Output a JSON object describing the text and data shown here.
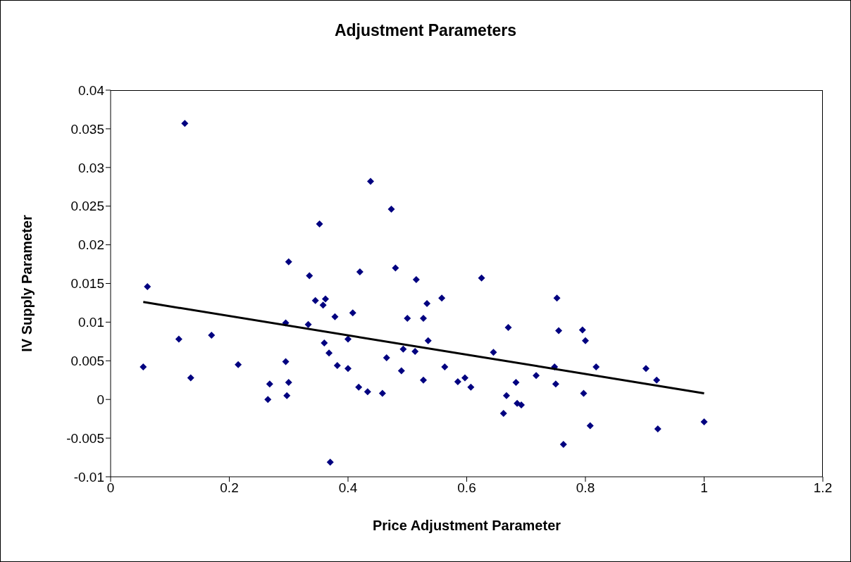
{
  "chart_data": {
    "type": "scatter",
    "title": "Adjustment Parameters",
    "xlabel": "Price Adjustment Parameter",
    "ylabel": "IV Supply Parameter",
    "xlim": [
      0,
      1.2
    ],
    "xticks": [
      0,
      0.2,
      0.4,
      0.6,
      0.8,
      1,
      1.2
    ],
    "ylim": [
      -0.01,
      0.04
    ],
    "yticks": [
      -0.01,
      -0.005,
      0,
      0.005,
      0.01,
      0.015,
      0.02,
      0.025,
      0.03,
      0.035,
      0.04
    ],
    "marker": "diamond",
    "series": [
      {
        "color": "#000080",
        "x": [
          0.055,
          0.062,
          0.115,
          0.125,
          0.135,
          0.17,
          0.215,
          0.265,
          0.268,
          0.295,
          0.295,
          0.297,
          0.3,
          0.3,
          0.333,
          0.335,
          0.345,
          0.352,
          0.358,
          0.36,
          0.362,
          0.368,
          0.37,
          0.378,
          0.382,
          0.4,
          0.4,
          0.408,
          0.418,
          0.42,
          0.433,
          0.438,
          0.458,
          0.465,
          0.473,
          0.48,
          0.49,
          0.493,
          0.5,
          0.513,
          0.515,
          0.527,
          0.527,
          0.533,
          0.535,
          0.558,
          0.563,
          0.585,
          0.597,
          0.607,
          0.625,
          0.645,
          0.662,
          0.667,
          0.67,
          0.683,
          0.685,
          0.692,
          0.717,
          0.748,
          0.75,
          0.752,
          0.755,
          0.763,
          0.795,
          0.797,
          0.8,
          0.808,
          0.818,
          0.902,
          0.92,
          0.922,
          1.0
        ],
        "values": [
          0.0042,
          0.0146,
          0.0078,
          0.0357,
          0.0028,
          0.0083,
          0.0045,
          0.0,
          0.002,
          0.0049,
          0.0099,
          0.0005,
          0.0022,
          0.0178,
          0.0097,
          0.016,
          0.0128,
          0.0227,
          0.0122,
          0.0073,
          0.013,
          0.006,
          -0.0081,
          0.0107,
          0.0044,
          0.0078,
          0.004,
          0.0112,
          0.0016,
          0.0165,
          0.001,
          0.0282,
          0.0008,
          0.0054,
          0.0246,
          0.017,
          0.0037,
          0.0065,
          0.0105,
          0.0062,
          0.0155,
          0.0025,
          0.0105,
          0.0124,
          0.0076,
          0.0131,
          0.0042,
          0.0023,
          0.0028,
          0.0016,
          0.0157,
          0.0061,
          -0.0018,
          0.0005,
          0.0093,
          0.0022,
          -0.0005,
          -0.0007,
          0.0031,
          0.0042,
          0.002,
          0.0131,
          0.0089,
          -0.0058,
          0.009,
          0.0008,
          0.0076,
          -0.0034,
          0.0042,
          0.004,
          0.0025,
          -0.0038,
          -0.0029
        ]
      },
      {
        "type": "line",
        "color": "#000000",
        "marker": "none",
        "x": [
          0.055,
          1.0
        ],
        "values": [
          0.0126,
          0.0008
        ]
      }
    ]
  }
}
